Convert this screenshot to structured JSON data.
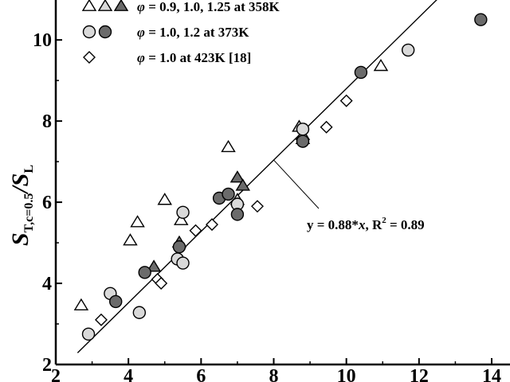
{
  "chart_data": {
    "type": "scatter",
    "title": "",
    "xlabel": "",
    "ylabel": {
      "main": "S",
      "main_sub": "T,c=0.5",
      "slash": "/",
      "den": "S",
      "den_sub": "L"
    },
    "xlim": [
      2,
      14
    ],
    "ylim": [
      2,
      11.2
    ],
    "x_ticks": [
      2,
      4,
      6,
      8,
      10,
      12,
      14
    ],
    "y_ticks": [
      2,
      4,
      6,
      8,
      10
    ],
    "grid": false,
    "legend_position": "top-left",
    "colors": {
      "light_fill": "#d9d9d9",
      "dark_fill": "#6b6b6b",
      "open_fill": "#ffffff",
      "stroke": "#000000"
    },
    "legend": [
      {
        "label_prefix": "φ",
        "label_text": " = 0.9, 1.0, 1.25 at 358K",
        "markers": [
          {
            "shape": "triangle",
            "fill": "open"
          },
          {
            "shape": "triangle",
            "fill": "light"
          },
          {
            "shape": "triangle",
            "fill": "dark"
          }
        ]
      },
      {
        "label_prefix": "φ",
        "label_text": " = 1.0, 1.2 at 373K",
        "markers": [
          {
            "shape": "circle",
            "fill": "light"
          },
          {
            "shape": "circle",
            "fill": "dark"
          }
        ]
      },
      {
        "label_prefix": "φ",
        "label_text": " = 1.0 at 423K [18]",
        "markers": [
          {
            "shape": "diamond",
            "fill": "open"
          }
        ]
      }
    ],
    "series": [
      {
        "shape": "triangle",
        "fill": "open",
        "points": [
          [
            2.7,
            3.45
          ],
          [
            4.05,
            5.05
          ],
          [
            4.25,
            5.5
          ],
          [
            5.0,
            6.05
          ],
          [
            5.45,
            5.55
          ],
          [
            6.75,
            7.35
          ],
          [
            10.95,
            9.35
          ]
        ]
      },
      {
        "shape": "triangle",
        "fill": "light",
        "points": [
          [
            7.0,
            6.05
          ],
          [
            8.8,
            7.65
          ],
          [
            8.7,
            7.85
          ]
        ]
      },
      {
        "shape": "triangle",
        "fill": "dark",
        "points": [
          [
            4.7,
            4.4
          ],
          [
            5.4,
            5.0
          ],
          [
            7.0,
            6.6
          ],
          [
            7.15,
            6.4
          ],
          [
            8.8,
            7.55
          ]
        ]
      },
      {
        "shape": "circle",
        "fill": "light",
        "points": [
          [
            2.9,
            2.75
          ],
          [
            3.5,
            3.75
          ],
          [
            4.3,
            3.28
          ],
          [
            5.35,
            4.6
          ],
          [
            5.5,
            4.5
          ],
          [
            5.5,
            5.75
          ],
          [
            7.0,
            5.95
          ],
          [
            8.8,
            7.8
          ],
          [
            11.7,
            9.75
          ]
        ]
      },
      {
        "shape": "circle",
        "fill": "dark",
        "points": [
          [
            3.65,
            3.55
          ],
          [
            4.45,
            4.27
          ],
          [
            5.4,
            4.9
          ],
          [
            6.5,
            6.1
          ],
          [
            6.75,
            6.2
          ],
          [
            7.0,
            5.7
          ],
          [
            8.8,
            7.5
          ],
          [
            10.4,
            9.2
          ],
          [
            13.7,
            10.5
          ]
        ]
      },
      {
        "shape": "diamond",
        "fill": "open",
        "points": [
          [
            3.25,
            3.1
          ],
          [
            4.8,
            4.1
          ],
          [
            4.9,
            4.0
          ],
          [
            5.85,
            5.3
          ],
          [
            6.3,
            5.45
          ],
          [
            7.55,
            5.9
          ],
          [
            9.45,
            7.85
          ],
          [
            10.0,
            8.5
          ]
        ]
      }
    ],
    "fit": {
      "slope": 0.88,
      "x_range": [
        2.6,
        12.8
      ],
      "label": {
        "prefix": "y = 0.88*",
        "var": "x",
        "middle": ", R",
        "sup": "2",
        "suffix": " = 0.89"
      }
    }
  }
}
